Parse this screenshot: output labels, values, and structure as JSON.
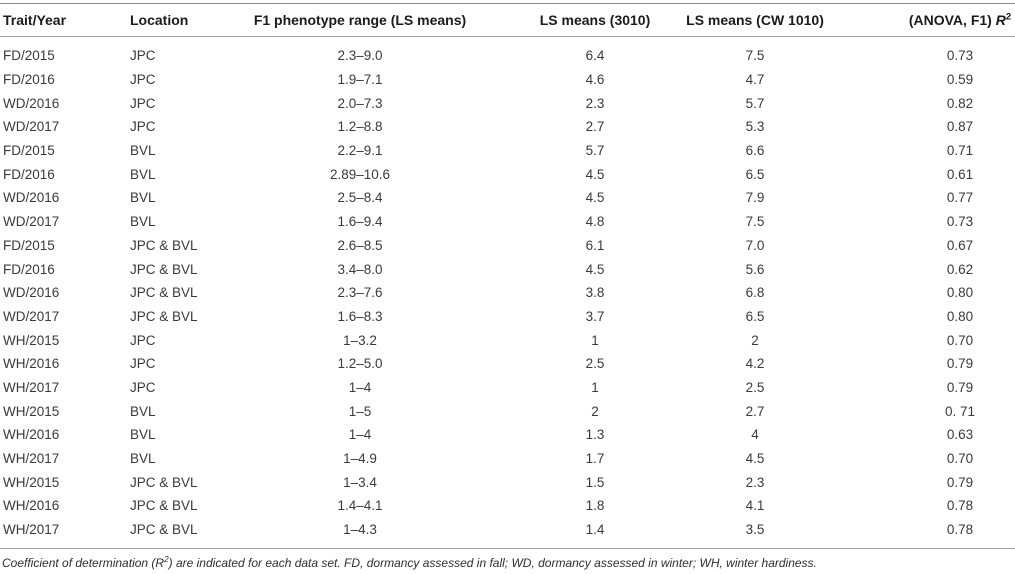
{
  "table": {
    "headers": [
      "Trait/Year",
      "Location",
      "F1 phenotype range (LS means)",
      "LS means (3010)",
      "LS means (CW 1010)"
    ],
    "r2_header": {
      "prefix": "(ANOVA, F1) ",
      "italic": "R",
      "sup": "2"
    },
    "column_keys": [
      "trait_year",
      "location",
      "f1_range",
      "ls_means_3010",
      "ls_means_cw1010",
      "anova_r2"
    ],
    "rows": [
      [
        "FD/2015",
        "JPC",
        "2.3–9.0",
        "6.4",
        "7.5",
        "0.73"
      ],
      [
        "FD/2016",
        "JPC",
        "1.9–7.1",
        "4.6",
        "4.7",
        "0.59"
      ],
      [
        "WD/2016",
        "JPC",
        "2.0–7.3",
        "2.3",
        "5.7",
        "0.82"
      ],
      [
        "WD/2017",
        "JPC",
        "1.2–8.8",
        "2.7",
        "5.3",
        "0.87"
      ],
      [
        "FD/2015",
        "BVL",
        "2.2–9.1",
        "5.7",
        "6.6",
        "0.71"
      ],
      [
        "FD/2016",
        "BVL",
        "2.89–10.6",
        "4.5",
        "6.5",
        "0.61"
      ],
      [
        "WD/2016",
        "BVL",
        "2.5–8.4",
        "4.5",
        "7.9",
        "0.77"
      ],
      [
        "WD/2017",
        "BVL",
        "1.6–9.4",
        "4.8",
        "7.5",
        "0.73"
      ],
      [
        "FD/2015",
        "JPC & BVL",
        "2.6–8.5",
        "6.1",
        "7.0",
        "0.67"
      ],
      [
        "FD/2016",
        "JPC & BVL",
        "3.4–8.0",
        "4.5",
        "5.6",
        "0.62"
      ],
      [
        "WD/2016",
        "JPC & BVL",
        "2.3–7.6",
        "3.8",
        "6.8",
        "0.80"
      ],
      [
        "WD/2017",
        "JPC & BVL",
        "1.6–8.3",
        "3.7",
        "6.5",
        "0.80"
      ],
      [
        "WH/2015",
        "JPC",
        "1–3.2",
        "1",
        "2",
        "0.70"
      ],
      [
        "WH/2016",
        "JPC",
        "1.2–5.0",
        "2.5",
        "4.2",
        "0.79"
      ],
      [
        "WH/2017",
        "JPC",
        "1–4",
        "1",
        "2.5",
        "0.79"
      ],
      [
        "WH/2015",
        "BVL",
        "1–5",
        "2",
        "2.7",
        "0. 71"
      ],
      [
        "WH/2016",
        "BVL",
        "1–4",
        "1.3",
        "4",
        "0.63"
      ],
      [
        "WH/2017",
        "BVL",
        "1–4.9",
        "1.7",
        "4.5",
        "0.70"
      ],
      [
        "WH/2015",
        "JPC & BVL",
        "1–3.4",
        "1.5",
        "2.3",
        "0.79"
      ],
      [
        "WH/2016",
        "JPC & BVL",
        "1.4–4.1",
        "1.8",
        "4.1",
        "0.78"
      ],
      [
        "WH/2017",
        "JPC & BVL",
        "1–4.3",
        "1.4",
        "3.5",
        "0.78"
      ]
    ]
  },
  "footnote": {
    "prefix": "Coefficient of determination (R",
    "sup": "2",
    "suffix": ") are indicated for each data set. FD, dormancy assessed in fall; WD, dormancy assessed in winter; WH, winter hardiness."
  }
}
